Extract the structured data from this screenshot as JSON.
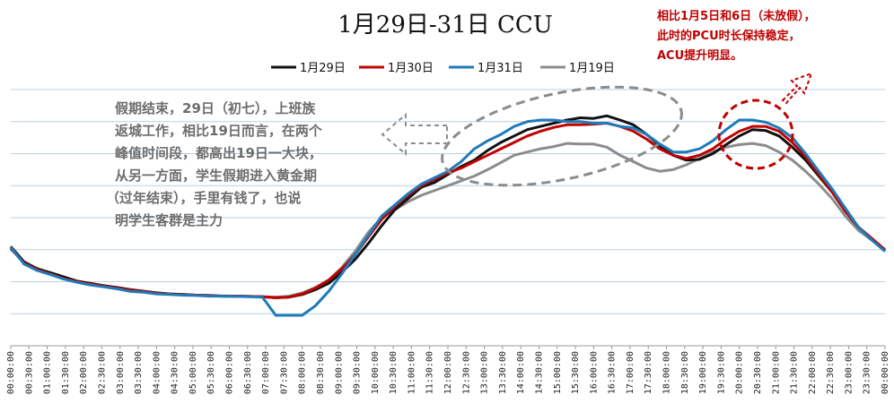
{
  "chart_data": {
    "type": "line",
    "title": "1月29日-31日 CCU",
    "xlabel": "",
    "ylabel": "",
    "grid": true,
    "legend_position": "top",
    "colors": {
      "1月29日": "#111111",
      "1月30日": "#c00000",
      "1月31日": "#1f7ab8",
      "1月19日": "#8c8c8c",
      "grid": "#b9cfe0",
      "note_left": "#6d6d6d",
      "note_right": "#c00000"
    },
    "x_tick_labels": [
      "00:00:00",
      "00:30:00",
      "01:00:00",
      "01:30:00",
      "02:00:00",
      "02:30:00",
      "03:00:00",
      "03:30:00",
      "04:00:00",
      "04:30:00",
      "05:00:00",
      "05:30:00",
      "06:00:00",
      "06:30:00",
      "07:00:00",
      "07:30:00",
      "08:00:00",
      "08:30:00",
      "09:00:00",
      "09:30:00",
      "10:00:00",
      "10:30:00",
      "11:00:00",
      "11:30:00",
      "12:00:00",
      "12:30:00",
      "13:00:00",
      "13:30:00",
      "14:00:00",
      "14:30:00",
      "15:00:00",
      "15:30:00",
      "16:00:00",
      "16:30:00",
      "17:00:00",
      "17:30:00",
      "18:00:00",
      "18:30:00",
      "19:00:00",
      "19:30:00",
      "20:00:00",
      "20:30:00",
      "21:00:00",
      "21:30:00",
      "22:00:00",
      "22:30:00",
      "23:00:00",
      "23:30:00",
      "00:00:00"
    ],
    "ylim": [
      0,
      8
    ],
    "series": [
      {
        "name": "1月29日",
        "values": [
          3.1,
          2.62,
          2.4,
          2.28,
          2.15,
          2.02,
          1.95,
          1.88,
          1.82,
          1.75,
          1.7,
          1.65,
          1.62,
          1.6,
          1.58,
          1.57,
          1.55,
          1.55,
          1.54,
          1.53,
          1.5,
          1.52,
          1.6,
          1.75,
          1.95,
          2.3,
          2.7,
          3.2,
          3.75,
          4.25,
          4.6,
          4.95,
          5.1,
          5.35,
          5.6,
          5.8,
          6.1,
          6.35,
          6.55,
          6.75,
          6.85,
          6.95,
          7.05,
          7.12,
          7.1,
          7.18,
          7.05,
          6.9,
          6.6,
          6.25,
          5.95,
          5.8,
          5.82,
          6.0,
          6.28,
          6.55,
          6.75,
          6.72,
          6.55,
          6.2,
          5.8,
          5.3,
          4.8,
          4.2,
          3.7,
          3.35,
          2.95
        ]
      },
      {
        "name": "1月30日",
        "values": [
          3.05,
          2.58,
          2.38,
          2.24,
          2.1,
          2.0,
          1.93,
          1.86,
          1.8,
          1.74,
          1.69,
          1.64,
          1.61,
          1.59,
          1.58,
          1.56,
          1.55,
          1.55,
          1.54,
          1.53,
          1.5,
          1.52,
          1.62,
          1.8,
          2.05,
          2.4,
          2.85,
          3.4,
          3.95,
          4.35,
          4.7,
          5.0,
          5.2,
          5.4,
          5.55,
          5.75,
          5.95,
          6.15,
          6.35,
          6.55,
          6.7,
          6.82,
          6.9,
          6.9,
          6.92,
          6.95,
          6.85,
          6.7,
          6.45,
          6.15,
          5.95,
          5.85,
          5.95,
          6.15,
          6.45,
          6.7,
          6.85,
          6.85,
          6.7,
          6.35,
          5.9,
          5.35,
          4.8,
          4.2,
          3.7,
          3.35,
          3.0
        ]
      },
      {
        "name": "1月31日",
        "values": [
          3.08,
          2.55,
          2.35,
          2.22,
          2.08,
          1.98,
          1.9,
          1.84,
          1.78,
          1.7,
          1.67,
          1.62,
          1.6,
          1.58,
          1.57,
          1.55,
          1.55,
          1.54,
          1.53,
          1.52,
          0.95,
          0.95,
          0.95,
          1.25,
          1.7,
          2.25,
          2.85,
          3.45,
          4.05,
          4.4,
          4.75,
          5.05,
          5.25,
          5.45,
          5.75,
          6.15,
          6.4,
          6.6,
          6.85,
          7.0,
          7.05,
          7.05,
          7.0,
          7.0,
          6.95,
          6.95,
          6.85,
          6.8,
          6.6,
          6.3,
          6.05,
          6.05,
          6.15,
          6.4,
          6.75,
          7.05,
          7.05,
          6.98,
          6.8,
          6.5,
          6.0,
          5.45,
          4.9,
          4.3,
          3.7,
          3.3,
          2.95
        ]
      },
      {
        "name": "1月19日",
        "values": [
          3.02,
          2.6,
          2.42,
          2.27,
          2.12,
          2.02,
          1.95,
          1.88,
          1.82,
          1.76,
          1.71,
          1.66,
          1.62,
          1.6,
          1.58,
          1.57,
          1.56,
          1.55,
          1.54,
          1.53,
          1.52,
          1.55,
          1.65,
          1.82,
          2.05,
          2.45,
          2.95,
          3.55,
          4.0,
          4.25,
          4.5,
          4.7,
          4.85,
          5.0,
          5.15,
          5.3,
          5.5,
          5.72,
          5.95,
          6.05,
          6.15,
          6.22,
          6.32,
          6.3,
          6.3,
          6.2,
          5.95,
          5.75,
          5.55,
          5.45,
          5.5,
          5.65,
          5.85,
          6.05,
          6.2,
          6.28,
          6.32,
          6.25,
          6.05,
          5.8,
          5.45,
          5.05,
          4.6,
          4.05,
          3.6,
          3.3,
          2.98
        ]
      }
    ],
    "annotations": {
      "left_lines": [
        "假期结束，29日（初七），上班族",
        "返城工作，相比19日而言，在两个",
        "峰值时间段，都高出19日一大块，",
        "从另一方面，学生假期进入黄金期",
        "（过年结束），手里有钱了，也说",
        "明学生客群是主力"
      ],
      "right_lines": [
        "相比1月5日和6日（未放假），",
        "此时的PCU时长保持稳定，",
        "ACU提升明显。"
      ]
    }
  }
}
